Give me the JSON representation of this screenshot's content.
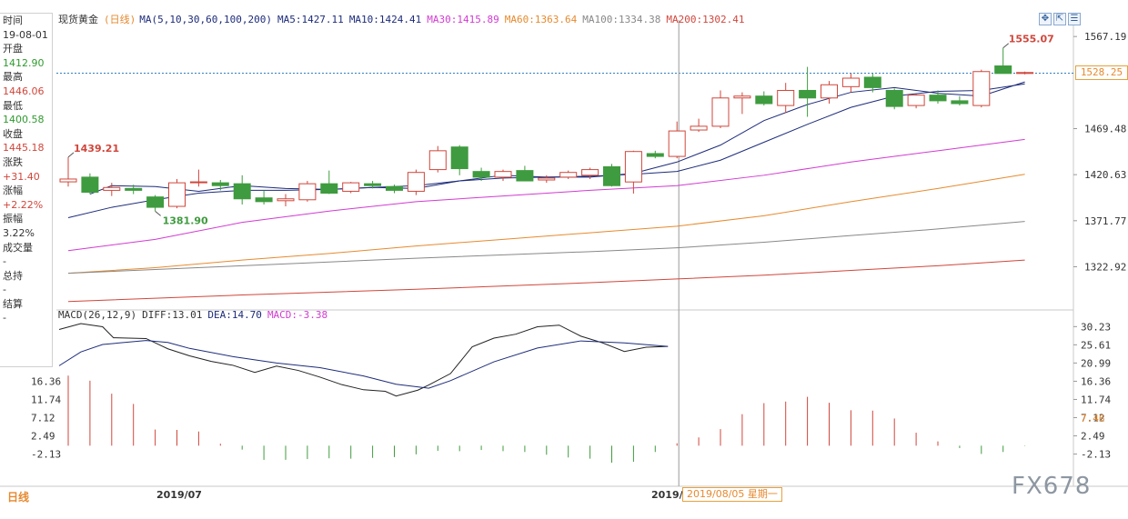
{
  "instrument": "现货黄金",
  "period_label": "(日线)",
  "ma_legend": {
    "params": "MA(5,10,30,60,100,200)",
    "items": [
      {
        "label": "MA5:1427.11",
        "color": "#1d2c7a"
      },
      {
        "label": "MA10:1424.41",
        "color": "#1d2c7a"
      },
      {
        "label": "MA30:1415.89",
        "color": "#d23bd2"
      },
      {
        "label": "MA60:1363.64",
        "color": "#e68a2e"
      },
      {
        "label": "MA100:1334.38",
        "color": "#888888"
      },
      {
        "label": "MA200:1302.41",
        "color": "#d0463b"
      }
    ]
  },
  "macd_legend": {
    "params": "MACD(26,12,9)",
    "diff": "DIFF:13.01",
    "dea": "DEA:14.70",
    "macd": "MACD:-3.38"
  },
  "info_panel": [
    {
      "text": "时间",
      "color": "#333333"
    },
    {
      "text": "19-08-01",
      "color": "#333333"
    },
    {
      "text": "开盘",
      "color": "#333333"
    },
    {
      "text": "1412.90",
      "color": "#2e9a2e"
    },
    {
      "text": "最高",
      "color": "#333333"
    },
    {
      "text": "1446.06",
      "color": "#d0463b"
    },
    {
      "text": "最低",
      "color": "#333333"
    },
    {
      "text": "1400.58",
      "color": "#2e9a2e"
    },
    {
      "text": "收盘",
      "color": "#333333"
    },
    {
      "text": "1445.18",
      "color": "#d0463b"
    },
    {
      "text": "涨跌",
      "color": "#333333"
    },
    {
      "text": "+31.40",
      "color": "#d0463b"
    },
    {
      "text": "涨幅",
      "color": "#333333"
    },
    {
      "text": "+2.22%",
      "color": "#d0463b"
    },
    {
      "text": "振幅",
      "color": "#333333"
    },
    {
      "text": "3.22%",
      "color": "#333333"
    },
    {
      "text": "成交量",
      "color": "#333333"
    },
    {
      "text": "-",
      "color": "#333333"
    },
    {
      "text": "总持",
      "color": "#333333"
    },
    {
      "text": "-",
      "color": "#333333"
    },
    {
      "text": "结算",
      "color": "#333333"
    },
    {
      "text": "-",
      "color": "#333333"
    }
  ],
  "toolbar_icons": [
    "move-icon",
    "zoom-icon",
    "expand-icon"
  ],
  "current_price_tag": "1528.25",
  "bottom_tab": "日线",
  "x_labels": [
    {
      "text": "2019/07",
      "bar": 4
    },
    {
      "text": "2019/0",
      "bar": 28
    }
  ],
  "crosshair_date": "2019/08/05 星期一",
  "watermark": "FX678",
  "chart_data": [
    {
      "type": "candlestick",
      "title": "现货黄金(日线)",
      "y_ticks": [
        1567.19,
        1528.25,
        1469.48,
        1420.63,
        1371.77,
        1322.92
      ],
      "ylim": [
        1280,
        1577
      ],
      "current_price": 1528.25,
      "crosshair_bar": 28,
      "annotations": [
        {
          "text": "1439.21",
          "bar": 0,
          "value": 1439.21
        },
        {
          "text": "1381.90",
          "bar": 4,
          "value": 1381.9
        },
        {
          "text": "1555.07",
          "bar": 43,
          "value": 1555.07
        }
      ],
      "candles": [
        {
          "o": 1413,
          "h": 1439.21,
          "l": 1408,
          "c": 1416
        },
        {
          "o": 1418,
          "h": 1422,
          "l": 1400,
          "c": 1402
        },
        {
          "o": 1404,
          "h": 1412,
          "l": 1398,
          "c": 1407
        },
        {
          "o": 1406,
          "h": 1410,
          "l": 1400,
          "c": 1404
        },
        {
          "o": 1397,
          "h": 1399,
          "l": 1381.9,
          "c": 1386
        },
        {
          "o": 1387,
          "h": 1416,
          "l": 1385,
          "c": 1412
        },
        {
          "o": 1413,
          "h": 1426,
          "l": 1408,
          "c": 1413
        },
        {
          "o": 1412,
          "h": 1415,
          "l": 1404,
          "c": 1409
        },
        {
          "o": 1411,
          "h": 1420,
          "l": 1389,
          "c": 1395
        },
        {
          "o": 1396,
          "h": 1404,
          "l": 1389,
          "c": 1392
        },
        {
          "o": 1393,
          "h": 1400,
          "l": 1387,
          "c": 1395
        },
        {
          "o": 1394,
          "h": 1414,
          "l": 1392,
          "c": 1411
        },
        {
          "o": 1411,
          "h": 1425,
          "l": 1400,
          "c": 1401
        },
        {
          "o": 1403,
          "h": 1413,
          "l": 1401,
          "c": 1412
        },
        {
          "o": 1411,
          "h": 1414,
          "l": 1406,
          "c": 1409
        },
        {
          "o": 1408,
          "h": 1410,
          "l": 1401,
          "c": 1404
        },
        {
          "o": 1403,
          "h": 1426,
          "l": 1399,
          "c": 1423
        },
        {
          "o": 1426,
          "h": 1451,
          "l": 1423,
          "c": 1446
        },
        {
          "o": 1450,
          "h": 1452,
          "l": 1420,
          "c": 1427
        },
        {
          "o": 1424,
          "h": 1428,
          "l": 1414,
          "c": 1418
        },
        {
          "o": 1418,
          "h": 1426,
          "l": 1414,
          "c": 1424
        },
        {
          "o": 1425,
          "h": 1430,
          "l": 1414,
          "c": 1414
        },
        {
          "o": 1415,
          "h": 1420,
          "l": 1412,
          "c": 1417
        },
        {
          "o": 1418,
          "h": 1425,
          "l": 1416,
          "c": 1423
        },
        {
          "o": 1420,
          "h": 1428,
          "l": 1416,
          "c": 1426
        },
        {
          "o": 1429,
          "h": 1432,
          "l": 1408,
          "c": 1409
        },
        {
          "o": 1412.9,
          "h": 1446.06,
          "l": 1400.58,
          "c": 1445.18
        },
        {
          "o": 1443,
          "h": 1446,
          "l": 1438,
          "c": 1440
        },
        {
          "o": 1440,
          "h": 1477,
          "l": 1438,
          "c": 1467
        },
        {
          "o": 1468,
          "h": 1480,
          "l": 1466,
          "c": 1472
        },
        {
          "o": 1472,
          "h": 1510,
          "l": 1470,
          "c": 1502
        },
        {
          "o": 1502,
          "h": 1508,
          "l": 1485,
          "c": 1504
        },
        {
          "o": 1504,
          "h": 1509,
          "l": 1494,
          "c": 1496
        },
        {
          "o": 1494,
          "h": 1518,
          "l": 1486,
          "c": 1510
        },
        {
          "o": 1510,
          "h": 1535,
          "l": 1482,
          "c": 1502
        },
        {
          "o": 1502,
          "h": 1520,
          "l": 1496,
          "c": 1516
        },
        {
          "o": 1514,
          "h": 1528,
          "l": 1508,
          "c": 1523
        },
        {
          "o": 1524,
          "h": 1528,
          "l": 1508,
          "c": 1513
        },
        {
          "o": 1510,
          "h": 1512,
          "l": 1490,
          "c": 1493
        },
        {
          "o": 1494,
          "h": 1506,
          "l": 1491,
          "c": 1505
        },
        {
          "o": 1505,
          "h": 1510,
          "l": 1496,
          "c": 1499
        },
        {
          "o": 1499,
          "h": 1504,
          "l": 1494,
          "c": 1496
        },
        {
          "o": 1494,
          "h": 1532,
          "l": 1492,
          "c": 1530
        },
        {
          "o": 1536,
          "h": 1555.07,
          "l": 1528,
          "c": 1528
        },
        {
          "o": 1528,
          "h": 1530,
          "l": 1527,
          "c": 1529
        }
      ],
      "ma_series": [
        {
          "name": "MA5",
          "color": "#1d2c7a",
          "values": [
            {
              "bar": 1,
              "v": 1400
            },
            {
              "bar": 2,
              "v": 1409
            },
            {
              "bar": 4,
              "v": 1408
            },
            {
              "bar": 6,
              "v": 1403
            },
            {
              "bar": 8,
              "v": 1409
            },
            {
              "bar": 10,
              "v": 1406
            },
            {
              "bar": 12,
              "v": 1405
            },
            {
              "bar": 14,
              "v": 1407
            },
            {
              "bar": 16,
              "v": 1406
            },
            {
              "bar": 18,
              "v": 1414
            },
            {
              "bar": 20,
              "v": 1420
            },
            {
              "bar": 22,
              "v": 1418
            },
            {
              "bar": 24,
              "v": 1418
            },
            {
              "bar": 26,
              "v": 1422
            },
            {
              "bar": 28,
              "v": 1434
            },
            {
              "bar": 30,
              "v": 1452
            },
            {
              "bar": 32,
              "v": 1478
            },
            {
              "bar": 34,
              "v": 1495
            },
            {
              "bar": 36,
              "v": 1508
            },
            {
              "bar": 38,
              "v": 1513
            },
            {
              "bar": 40,
              "v": 1507
            },
            {
              "bar": 42,
              "v": 1504
            },
            {
              "bar": 44,
              "v": 1519
            }
          ]
        },
        {
          "name": "MA10",
          "color": "#1d2c7a",
          "values": [
            {
              "bar": 0,
              "v": 1375
            },
            {
              "bar": 2,
              "v": 1386
            },
            {
              "bar": 4,
              "v": 1394
            },
            {
              "bar": 6,
              "v": 1401
            },
            {
              "bar": 8,
              "v": 1404
            },
            {
              "bar": 10,
              "v": 1404
            },
            {
              "bar": 12,
              "v": 1405
            },
            {
              "bar": 14,
              "v": 1407
            },
            {
              "bar": 16,
              "v": 1409
            },
            {
              "bar": 18,
              "v": 1414
            },
            {
              "bar": 20,
              "v": 1417
            },
            {
              "bar": 22,
              "v": 1418
            },
            {
              "bar": 24,
              "v": 1419
            },
            {
              "bar": 26,
              "v": 1421
            },
            {
              "bar": 28,
              "v": 1424
            },
            {
              "bar": 30,
              "v": 1436
            },
            {
              "bar": 32,
              "v": 1455
            },
            {
              "bar": 34,
              "v": 1474
            },
            {
              "bar": 36,
              "v": 1492
            },
            {
              "bar": 38,
              "v": 1504
            },
            {
              "bar": 40,
              "v": 1509
            },
            {
              "bar": 42,
              "v": 1510
            },
            {
              "bar": 44,
              "v": 1517
            }
          ]
        },
        {
          "name": "MA30",
          "color": "#d23bd2",
          "values": [
            {
              "bar": 0,
              "v": 1340
            },
            {
              "bar": 4,
              "v": 1352
            },
            {
              "bar": 8,
              "v": 1370
            },
            {
              "bar": 12,
              "v": 1382
            },
            {
              "bar": 16,
              "v": 1392
            },
            {
              "bar": 20,
              "v": 1398
            },
            {
              "bar": 24,
              "v": 1404
            },
            {
              "bar": 28,
              "v": 1409
            },
            {
              "bar": 32,
              "v": 1420
            },
            {
              "bar": 36,
              "v": 1434
            },
            {
              "bar": 40,
              "v": 1446
            },
            {
              "bar": 44,
              "v": 1458
            }
          ]
        },
        {
          "name": "MA60",
          "color": "#e68a2e",
          "values": [
            {
              "bar": 0,
              "v": 1316
            },
            {
              "bar": 4,
              "v": 1322
            },
            {
              "bar": 8,
              "v": 1330
            },
            {
              "bar": 12,
              "v": 1337
            },
            {
              "bar": 16,
              "v": 1345
            },
            {
              "bar": 20,
              "v": 1352
            },
            {
              "bar": 24,
              "v": 1359
            },
            {
              "bar": 28,
              "v": 1366
            },
            {
              "bar": 32,
              "v": 1377
            },
            {
              "bar": 36,
              "v": 1392
            },
            {
              "bar": 40,
              "v": 1406
            },
            {
              "bar": 44,
              "v": 1421
            }
          ]
        },
        {
          "name": "MA100",
          "color": "#888888",
          "values": [
            {
              "bar": 0,
              "v": 1316
            },
            {
              "bar": 8,
              "v": 1324
            },
            {
              "bar": 16,
              "v": 1332
            },
            {
              "bar": 24,
              "v": 1339
            },
            {
              "bar": 28,
              "v": 1343
            },
            {
              "bar": 32,
              "v": 1349
            },
            {
              "bar": 36,
              "v": 1356
            },
            {
              "bar": 40,
              "v": 1363
            },
            {
              "bar": 44,
              "v": 1371
            }
          ]
        },
        {
          "name": "MA200",
          "color": "#d0463b",
          "values": [
            {
              "bar": 0,
              "v": 1286
            },
            {
              "bar": 8,
              "v": 1293
            },
            {
              "bar": 16,
              "v": 1299
            },
            {
              "bar": 24,
              "v": 1306
            },
            {
              "bar": 28,
              "v": 1310
            },
            {
              "bar": 32,
              "v": 1314
            },
            {
              "bar": 36,
              "v": 1319
            },
            {
              "bar": 40,
              "v": 1324
            },
            {
              "bar": 44,
              "v": 1330
            }
          ]
        }
      ]
    },
    {
      "type": "macd",
      "title": "MACD(26,12,9)",
      "y_ticks": [
        30.23,
        25.61,
        20.99,
        16.36,
        11.74,
        7.12,
        2.49,
        -2.13
      ],
      "ylim": [
        -5,
        31
      ],
      "current_value_tag": "7.46",
      "diff": [
        {
          "bar": 0,
          "v": 29.5
        },
        {
          "bar": 2,
          "v": 31
        },
        {
          "bar": 4,
          "v": 30.2
        },
        {
          "bar": 5,
          "v": 27.4
        },
        {
          "bar": 8,
          "v": 27.2
        },
        {
          "bar": 10,
          "v": 24.6
        },
        {
          "bar": 12,
          "v": 22.8
        },
        {
          "bar": 14,
          "v": 21.4
        },
        {
          "bar": 16,
          "v": 20.4
        },
        {
          "bar": 18,
          "v": 18.6
        },
        {
          "bar": 20,
          "v": 20.2
        },
        {
          "bar": 22,
          "v": 19.1
        },
        {
          "bar": 24,
          "v": 17.4
        },
        {
          "bar": 26,
          "v": 15.5
        },
        {
          "bar": 28,
          "v": 14.2
        },
        {
          "bar": 30,
          "v": 13.8
        },
        {
          "bar": 31,
          "v": 12.6
        },
        {
          "bar": 33,
          "v": 14.1
        },
        {
          "bar": 34,
          "v": 15.4
        },
        {
          "bar": 36,
          "v": 18.3
        },
        {
          "bar": 38,
          "v": 25.1
        },
        {
          "bar": 40,
          "v": 27.3
        },
        {
          "bar": 42,
          "v": 28.3
        },
        {
          "bar": 44,
          "v": 30.2
        },
        {
          "bar": 46,
          "v": 30.6
        },
        {
          "bar": 48,
          "v": 27.8
        },
        {
          "bar": 50,
          "v": 26.1
        },
        {
          "bar": 52,
          "v": 23.9
        },
        {
          "bar": 54,
          "v": 25.0
        },
        {
          "bar": 56,
          "v": 25.2
        }
      ],
      "dea": [
        {
          "bar": 0,
          "v": 20.3
        },
        {
          "bar": 2,
          "v": 23.8
        },
        {
          "bar": 4,
          "v": 25.7
        },
        {
          "bar": 8,
          "v": 26.7
        },
        {
          "bar": 10,
          "v": 26.2
        },
        {
          "bar": 12,
          "v": 24.7
        },
        {
          "bar": 16,
          "v": 22.6
        },
        {
          "bar": 20,
          "v": 21.0
        },
        {
          "bar": 24,
          "v": 19.8
        },
        {
          "bar": 28,
          "v": 17.7
        },
        {
          "bar": 31,
          "v": 15.6
        },
        {
          "bar": 34,
          "v": 14.6
        },
        {
          "bar": 36,
          "v": 16.5
        },
        {
          "bar": 40,
          "v": 21.3
        },
        {
          "bar": 44,
          "v": 24.8
        },
        {
          "bar": 48,
          "v": 26.6
        },
        {
          "bar": 52,
          "v": 26.1
        },
        {
          "bar": 56,
          "v": 25.2
        }
      ],
      "histogram": [
        17.8,
        16.5,
        13.2,
        10.6,
        4.1,
        4.0,
        3.6,
        0.5,
        -1.0,
        -3.6,
        -3.6,
        -3.4,
        -3.2,
        -3.3,
        -3.1,
        -2.9,
        -2.2,
        -1.3,
        -1.4,
        -1.1,
        -1.4,
        -1.6,
        -2.3,
        -3.0,
        -3.3,
        -4.3,
        -4.1,
        -1.6,
        0.6,
        2.1,
        4.2,
        8.0,
        10.8,
        11.2,
        12.4,
        10.9,
        9.0,
        8.9,
        6.9,
        3.3,
        1.1,
        -0.6,
        -2.1,
        -1.6,
        -0.1
      ]
    }
  ]
}
